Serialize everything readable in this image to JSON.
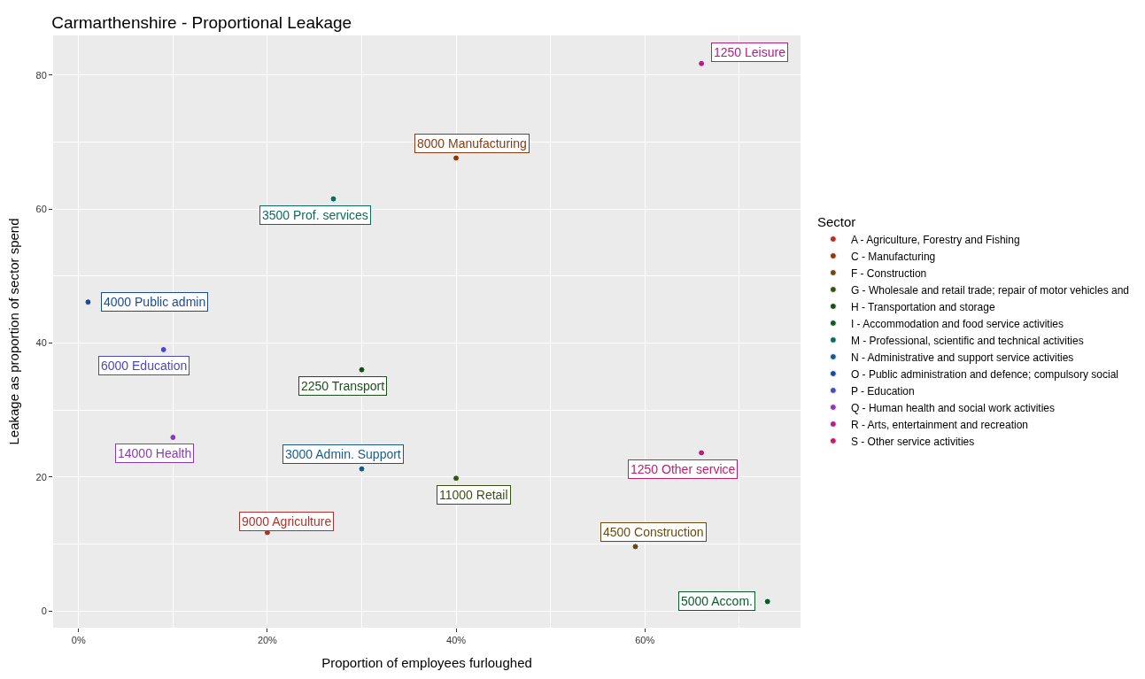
{
  "chart_data": {
    "type": "scatter",
    "title": "Carmarthenshire - Proportional Leakage",
    "xlabel": "Proportion of employees furloughed",
    "ylabel": "Leakage as proportion of sector spend",
    "legend_title": "Sector",
    "series": [
      {
        "name": "A - Agriculture, Forestry and Fishing",
        "color": "#b2312b",
        "x": [
          20
        ],
        "values": [
          11.7
        ]
      },
      {
        "name": "C - Manufacturing",
        "color": "#8b3a0f",
        "x": [
          40
        ],
        "values": [
          67.6
        ]
      },
      {
        "name": "F - Construction",
        "color": "#6b4a0f",
        "x": [
          59
        ],
        "values": [
          9.6
        ]
      },
      {
        "name": "G - Wholesale and retail trade; repair of motor vehicles and",
        "color": "#3a5010",
        "x": [
          40
        ],
        "values": [
          19.8
        ]
      },
      {
        "name": "H - Transportation and storage",
        "color": "#1a4f1a",
        "x": [
          30
        ],
        "values": [
          36.0
        ]
      },
      {
        "name": "I - Accommodation and food service activities",
        "color": "#0a5a2a",
        "x": [
          73
        ],
        "values": [
          1.4
        ]
      },
      {
        "name": "M - Professional, scientific and technical activities",
        "color": "#0f6a5a",
        "x": [
          27
        ],
        "values": [
          61.5
        ]
      },
      {
        "name": "N - Administrative and support service activities",
        "color": "#1a5a8a",
        "x": [
          30
        ],
        "values": [
          21.2
        ]
      },
      {
        "name": "O - Public administration and defence; compulsory social",
        "color": "#1a4a9a",
        "x": [
          1
        ],
        "values": [
          46.1
        ]
      },
      {
        "name": "P - Education",
        "color": "#4a4ab8",
        "x": [
          9
        ],
        "values": [
          39.0
        ]
      },
      {
        "name": "Q - Human health and social work activities",
        "color": "#8a3ab8",
        "x": [
          10
        ],
        "values": [
          25.9
        ]
      },
      {
        "name": "R - Arts, entertainment and recreation",
        "color": "#b0208a",
        "x": [
          66
        ],
        "values": [
          81.7
        ]
      },
      {
        "name": "S - Other service activities",
        "color": "#c0206a",
        "x": [
          66
        ],
        "values": [
          23.6
        ]
      }
    ],
    "annotations": [
      {
        "text": "9000 Agriculture",
        "x": 20,
        "y": 11.7
      },
      {
        "text": "8000 Manufacturing",
        "x": 40,
        "y": 67.6
      },
      {
        "text": "4500 Construction",
        "x": 59,
        "y": 9.6
      },
      {
        "text": "11000 Retail",
        "x": 40,
        "y": 19.8
      },
      {
        "text": "2250 Transport",
        "x": 30,
        "y": 36.0
      },
      {
        "text": "5000 Accom.",
        "x": 73,
        "y": 1.4
      },
      {
        "text": "3500 Prof. services",
        "x": 27,
        "y": 61.5
      },
      {
        "text": "3000 Admin. Support",
        "x": 30,
        "y": 21.2
      },
      {
        "text": "4000 Public admin",
        "x": 1,
        "y": 46.1
      },
      {
        "text": "6000 Education",
        "x": 9,
        "y": 39.0
      },
      {
        "text": "14000 Health",
        "x": 10,
        "y": 25.9
      },
      {
        "text": "1250 Leisure",
        "x": 66,
        "y": 81.7
      },
      {
        "text": "1250 Other service",
        "x": 66,
        "y": 23.6
      }
    ],
    "xlim": [
      -2.7,
      76.5
    ],
    "xticks": [
      {
        "value": 0,
        "label": "0%"
      },
      {
        "value": 20,
        "label": "20%"
      },
      {
        "value": 40,
        "label": "40%"
      },
      {
        "value": 60,
        "label": "60%"
      }
    ],
    "ylim": [
      -2.5,
      85.9
    ],
    "yticks": [
      0,
      20,
      40,
      60,
      80
    ],
    "grid": true,
    "legend": "right",
    "marker": "circle"
  }
}
